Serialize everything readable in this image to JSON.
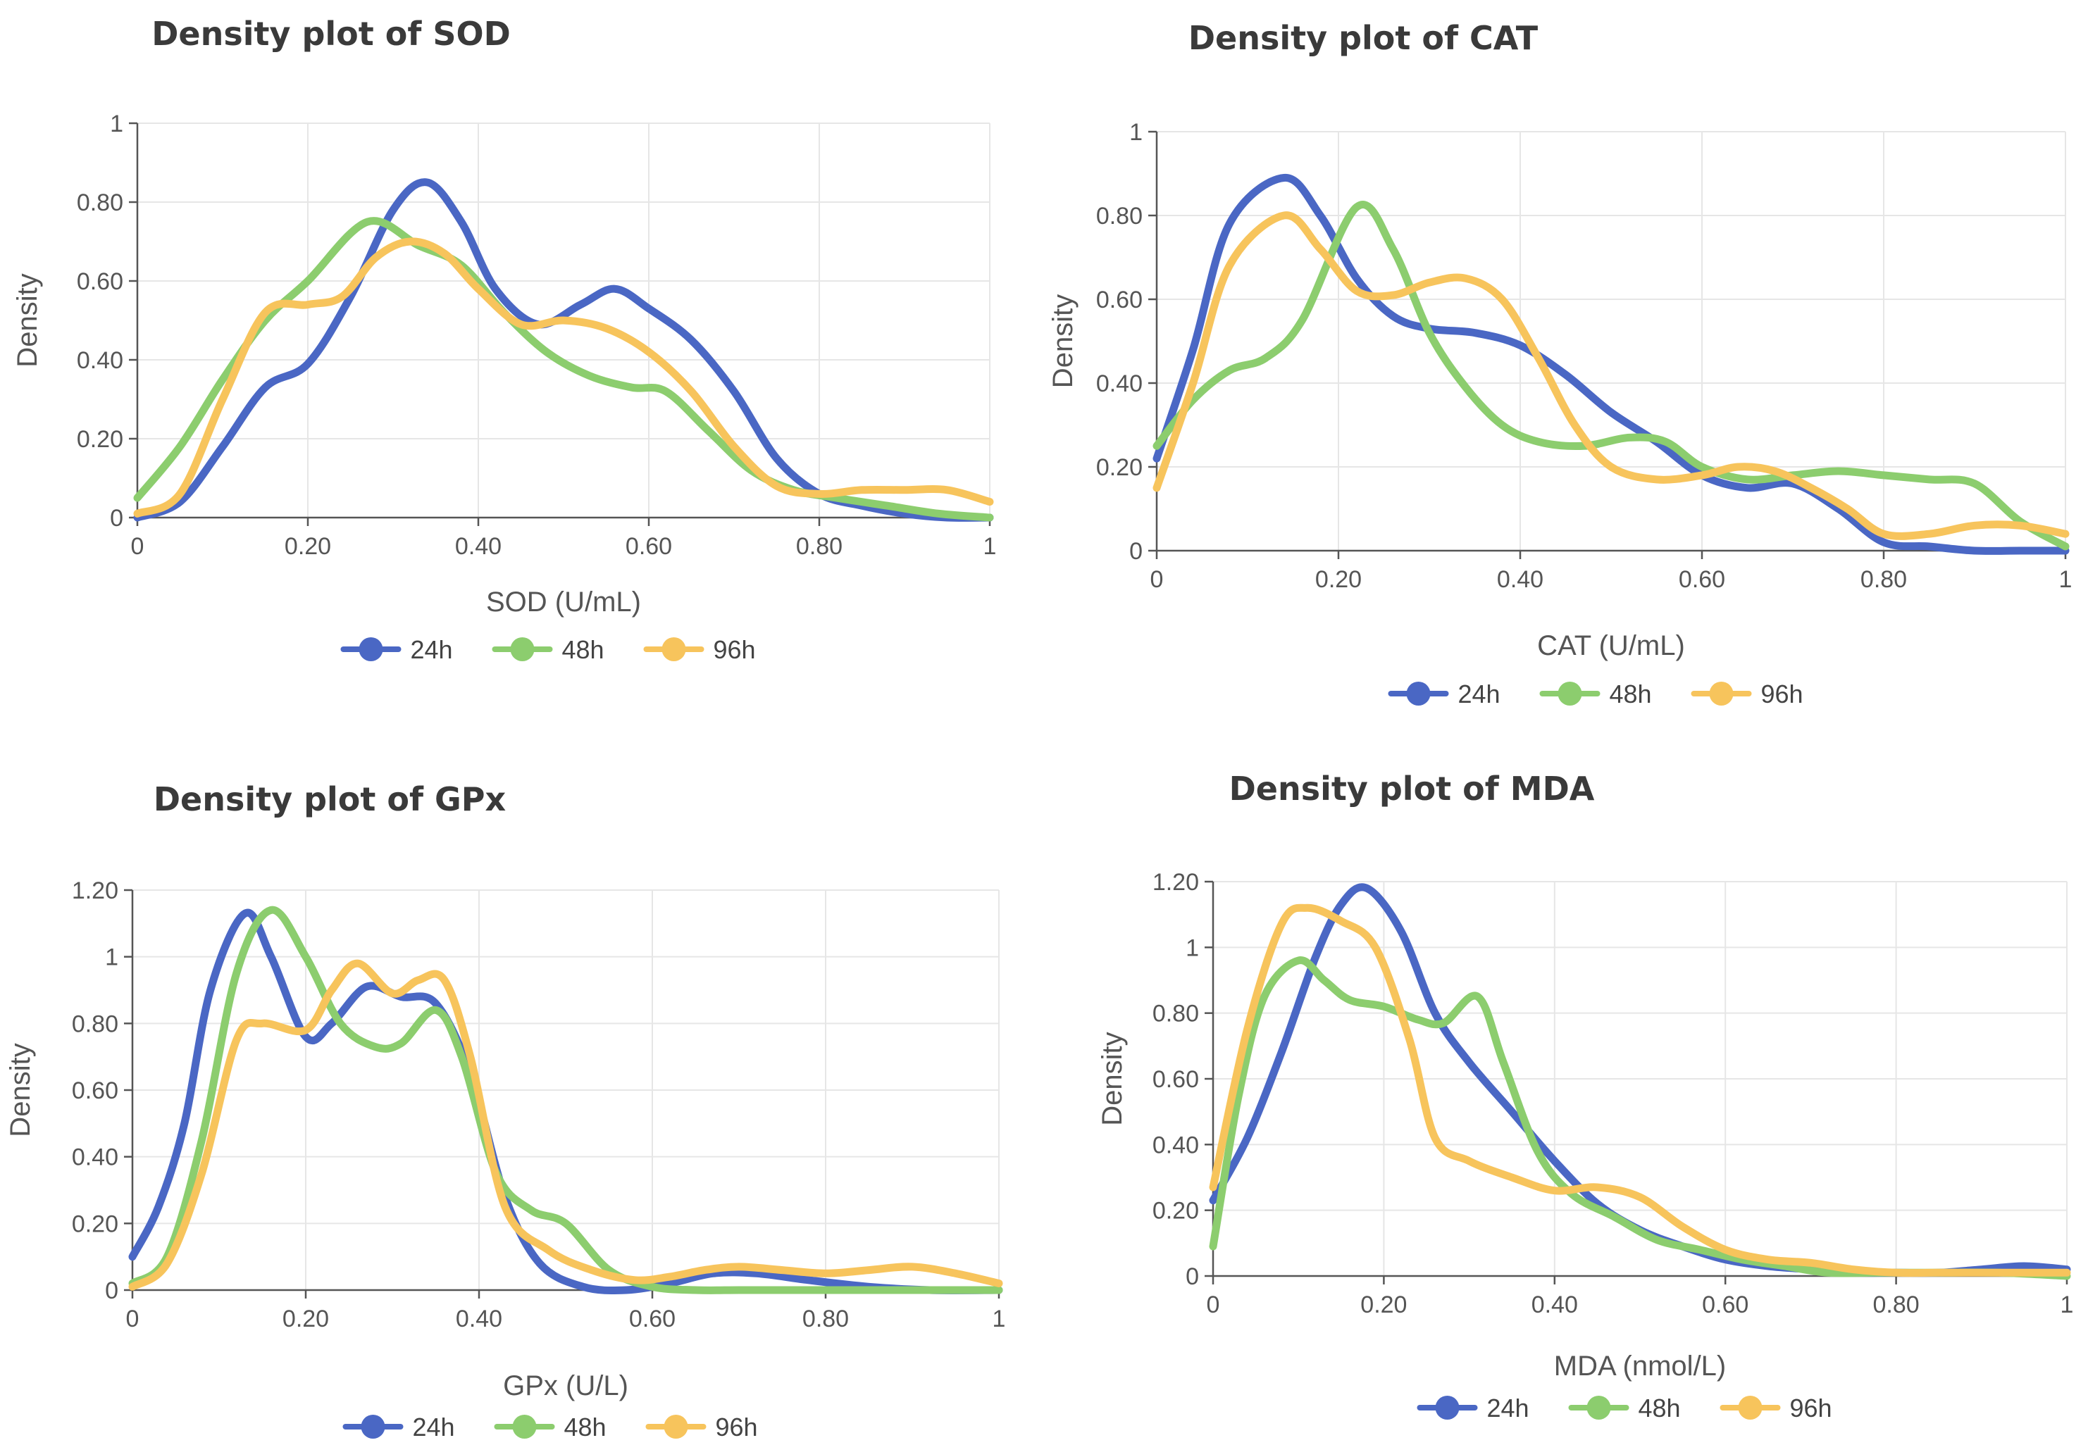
{
  "colors": {
    "24h": "#4a67c4",
    "48h": "#8ccd6e",
    "96h": "#f7c45c"
  },
  "chart_data": [
    {
      "type": "line",
      "title": "Density plot of SOD",
      "xlabel": "SOD (U/mL)",
      "ylabel": "Density",
      "xlim": [
        0,
        1
      ],
      "ylim": [
        0,
        1
      ],
      "grid": true,
      "legend": "bottom-center",
      "x_ticks": [
        0,
        0.2,
        0.4,
        0.6,
        0.8,
        1
      ],
      "x_tick_labels": [
        "0",
        "0.20",
        "0.40",
        "0.60",
        "0.80",
        "1"
      ],
      "y_ticks": [
        0,
        0.2,
        0.4,
        0.6,
        0.8,
        1
      ],
      "y_tick_labels": [
        "0",
        "0.20",
        "0.40",
        "0.60",
        "0.80",
        "1"
      ],
      "series": [
        {
          "name": "24h",
          "x": [
            0,
            0.05,
            0.1,
            0.15,
            0.2,
            0.25,
            0.3,
            0.34,
            0.38,
            0.42,
            0.47,
            0.52,
            0.56,
            0.6,
            0.65,
            0.7,
            0.75,
            0.8,
            0.85,
            0.9,
            0.95,
            1
          ],
          "y": [
            0,
            0.04,
            0.18,
            0.33,
            0.39,
            0.56,
            0.78,
            0.85,
            0.75,
            0.58,
            0.49,
            0.54,
            0.58,
            0.53,
            0.45,
            0.32,
            0.15,
            0.06,
            0.03,
            0.01,
            0.0,
            0.0
          ]
        },
        {
          "name": "48h",
          "x": [
            0,
            0.05,
            0.1,
            0.15,
            0.2,
            0.27,
            0.33,
            0.38,
            0.43,
            0.48,
            0.53,
            0.58,
            0.62,
            0.67,
            0.72,
            0.77,
            0.82,
            0.88,
            0.94,
            1
          ],
          "y": [
            0.05,
            0.18,
            0.35,
            0.5,
            0.6,
            0.75,
            0.69,
            0.64,
            0.52,
            0.42,
            0.36,
            0.33,
            0.32,
            0.22,
            0.12,
            0.07,
            0.05,
            0.03,
            0.01,
            0.0
          ]
        },
        {
          "name": "96h",
          "x": [
            0,
            0.05,
            0.1,
            0.15,
            0.2,
            0.24,
            0.28,
            0.32,
            0.36,
            0.4,
            0.45,
            0.5,
            0.55,
            0.6,
            0.65,
            0.7,
            0.75,
            0.8,
            0.85,
            0.9,
            0.95,
            1
          ],
          "y": [
            0.01,
            0.06,
            0.3,
            0.52,
            0.54,
            0.56,
            0.66,
            0.7,
            0.67,
            0.58,
            0.49,
            0.5,
            0.48,
            0.42,
            0.32,
            0.18,
            0.08,
            0.06,
            0.07,
            0.07,
            0.07,
            0.04
          ]
        }
      ]
    },
    {
      "type": "line",
      "title": "Density plot of CAT",
      "xlabel": "CAT (U/mL)",
      "ylabel": "Density",
      "xlim": [
        0,
        1
      ],
      "ylim": [
        0,
        1
      ],
      "grid": true,
      "legend": "bottom-center",
      "x_ticks": [
        0,
        0.2,
        0.4,
        0.6,
        0.8,
        1
      ],
      "x_tick_labels": [
        "0",
        "0.20",
        "0.40",
        "0.60",
        "0.80",
        "1"
      ],
      "y_ticks": [
        0,
        0.2,
        0.4,
        0.6,
        0.8,
        1
      ],
      "y_tick_labels": [
        "0",
        "0.20",
        "0.40",
        "0.60",
        "0.80",
        "1"
      ],
      "series": [
        {
          "name": "24h",
          "x": [
            0,
            0.04,
            0.08,
            0.14,
            0.18,
            0.22,
            0.26,
            0.3,
            0.35,
            0.4,
            0.45,
            0.5,
            0.55,
            0.6,
            0.65,
            0.7,
            0.75,
            0.8,
            0.85,
            0.9,
            0.95,
            1
          ],
          "y": [
            0.22,
            0.48,
            0.78,
            0.89,
            0.8,
            0.65,
            0.56,
            0.53,
            0.52,
            0.49,
            0.42,
            0.33,
            0.26,
            0.18,
            0.15,
            0.16,
            0.1,
            0.02,
            0.01,
            0.0,
            0.0,
            0.0
          ]
        },
        {
          "name": "48h",
          "x": [
            0,
            0.04,
            0.08,
            0.12,
            0.16,
            0.22,
            0.26,
            0.3,
            0.34,
            0.38,
            0.42,
            0.47,
            0.52,
            0.56,
            0.6,
            0.65,
            0.7,
            0.75,
            0.8,
            0.85,
            0.9,
            0.95,
            1
          ],
          "y": [
            0.25,
            0.36,
            0.43,
            0.46,
            0.55,
            0.82,
            0.72,
            0.52,
            0.39,
            0.3,
            0.26,
            0.25,
            0.27,
            0.26,
            0.2,
            0.17,
            0.18,
            0.19,
            0.18,
            0.17,
            0.16,
            0.07,
            0.01
          ]
        },
        {
          "name": "96h",
          "x": [
            0,
            0.04,
            0.08,
            0.14,
            0.18,
            0.22,
            0.26,
            0.3,
            0.34,
            0.38,
            0.42,
            0.46,
            0.5,
            0.55,
            0.6,
            0.64,
            0.68,
            0.72,
            0.76,
            0.8,
            0.85,
            0.9,
            0.95,
            1
          ],
          "y": [
            0.15,
            0.4,
            0.68,
            0.8,
            0.72,
            0.62,
            0.61,
            0.64,
            0.65,
            0.6,
            0.46,
            0.3,
            0.2,
            0.17,
            0.18,
            0.2,
            0.19,
            0.15,
            0.1,
            0.04,
            0.04,
            0.06,
            0.06,
            0.04
          ]
        }
      ]
    },
    {
      "type": "line",
      "title": "Density plot of GPx",
      "xlabel": "GPx (U/L)",
      "ylabel": "Density",
      "xlim": [
        0,
        1
      ],
      "ylim": [
        0,
        1.2
      ],
      "grid": true,
      "legend": "bottom-center",
      "x_ticks": [
        0,
        0.2,
        0.4,
        0.6,
        0.8,
        1
      ],
      "x_tick_labels": [
        "0",
        "0.20",
        "0.40",
        "0.60",
        "0.80",
        "1"
      ],
      "y_ticks": [
        0,
        0.2,
        0.4,
        0.6,
        0.8,
        1,
        1.2
      ],
      "y_tick_labels": [
        "0",
        "0.20",
        "0.40",
        "0.60",
        "0.80",
        "1",
        "1.20"
      ],
      "series": [
        {
          "name": "24h",
          "x": [
            0,
            0.03,
            0.06,
            0.09,
            0.13,
            0.16,
            0.2,
            0.23,
            0.27,
            0.31,
            0.35,
            0.39,
            0.43,
            0.47,
            0.52,
            0.57,
            0.62,
            0.67,
            0.72,
            0.78,
            0.85,
            0.92,
            1
          ],
          "y": [
            0.1,
            0.25,
            0.5,
            0.9,
            1.13,
            1.0,
            0.76,
            0.8,
            0.91,
            0.88,
            0.86,
            0.65,
            0.28,
            0.08,
            0.01,
            0.0,
            0.02,
            0.05,
            0.05,
            0.03,
            0.01,
            0.0,
            0.0
          ]
        },
        {
          "name": "48h",
          "x": [
            0,
            0.04,
            0.08,
            0.12,
            0.16,
            0.2,
            0.24,
            0.28,
            0.31,
            0.35,
            0.38,
            0.42,
            0.46,
            0.5,
            0.55,
            0.6,
            0.65,
            0.7,
            0.75,
            0.82,
            0.9,
            1
          ],
          "y": [
            0.02,
            0.1,
            0.45,
            0.95,
            1.14,
            1.0,
            0.8,
            0.73,
            0.74,
            0.84,
            0.7,
            0.35,
            0.24,
            0.2,
            0.06,
            0.01,
            0.0,
            0.0,
            0.0,
            0.0,
            0.0,
            0.0
          ]
        },
        {
          "name": "96h",
          "x": [
            0,
            0.04,
            0.08,
            0.12,
            0.15,
            0.2,
            0.23,
            0.26,
            0.3,
            0.33,
            0.36,
            0.39,
            0.43,
            0.48,
            0.53,
            0.58,
            0.62,
            0.66,
            0.7,
            0.75,
            0.8,
            0.85,
            0.9,
            0.95,
            1
          ],
          "y": [
            0.01,
            0.08,
            0.35,
            0.75,
            0.8,
            0.78,
            0.9,
            0.98,
            0.89,
            0.93,
            0.93,
            0.7,
            0.25,
            0.12,
            0.06,
            0.03,
            0.04,
            0.06,
            0.07,
            0.06,
            0.05,
            0.06,
            0.07,
            0.05,
            0.02
          ]
        }
      ]
    },
    {
      "type": "line",
      "title": "Density plot of MDA",
      "xlabel": "MDA (nmol/L)",
      "ylabel": "Density",
      "xlim": [
        0,
        1
      ],
      "ylim": [
        0,
        1.2
      ],
      "grid": true,
      "legend": "bottom-center",
      "x_ticks": [
        0,
        0.2,
        0.4,
        0.6,
        0.8,
        1
      ],
      "x_tick_labels": [
        "0",
        "0.20",
        "0.40",
        "0.60",
        "0.80",
        "1"
      ],
      "y_ticks": [
        0,
        0.2,
        0.4,
        0.6,
        0.8,
        1,
        1.2
      ],
      "y_tick_labels": [
        "0",
        "0.20",
        "0.40",
        "0.60",
        "0.80",
        "1",
        "1.20"
      ],
      "series": [
        {
          "name": "24h",
          "x": [
            0,
            0.04,
            0.08,
            0.12,
            0.15,
            0.18,
            0.22,
            0.26,
            0.3,
            0.35,
            0.4,
            0.45,
            0.5,
            0.55,
            0.6,
            0.65,
            0.7,
            0.75,
            0.8,
            0.85,
            0.9,
            0.95,
            1
          ],
          "y": [
            0.23,
            0.42,
            0.68,
            0.97,
            1.13,
            1.18,
            1.05,
            0.8,
            0.65,
            0.5,
            0.35,
            0.22,
            0.14,
            0.09,
            0.05,
            0.03,
            0.02,
            0.01,
            0.01,
            0.01,
            0.02,
            0.03,
            0.02
          ]
        },
        {
          "name": "48h",
          "x": [
            0,
            0.03,
            0.06,
            0.1,
            0.13,
            0.16,
            0.2,
            0.24,
            0.27,
            0.31,
            0.34,
            0.38,
            0.42,
            0.47,
            0.52,
            0.57,
            0.62,
            0.67,
            0.72,
            0.78,
            0.85,
            0.92,
            1
          ],
          "y": [
            0.09,
            0.55,
            0.85,
            0.96,
            0.9,
            0.84,
            0.82,
            0.78,
            0.77,
            0.85,
            0.65,
            0.38,
            0.25,
            0.18,
            0.11,
            0.08,
            0.05,
            0.03,
            0.01,
            0.01,
            0.01,
            0.01,
            0.0
          ]
        },
        {
          "name": "96h",
          "x": [
            0,
            0.04,
            0.08,
            0.11,
            0.15,
            0.19,
            0.23,
            0.26,
            0.3,
            0.35,
            0.4,
            0.45,
            0.5,
            0.55,
            0.6,
            0.65,
            0.7,
            0.75,
            0.8,
            0.85,
            0.9,
            0.95,
            1
          ],
          "y": [
            0.27,
            0.75,
            1.07,
            1.12,
            1.08,
            1.0,
            0.72,
            0.42,
            0.35,
            0.3,
            0.26,
            0.27,
            0.24,
            0.15,
            0.08,
            0.05,
            0.04,
            0.02,
            0.01,
            0.01,
            0.01,
            0.01,
            0.01
          ]
        }
      ]
    }
  ]
}
